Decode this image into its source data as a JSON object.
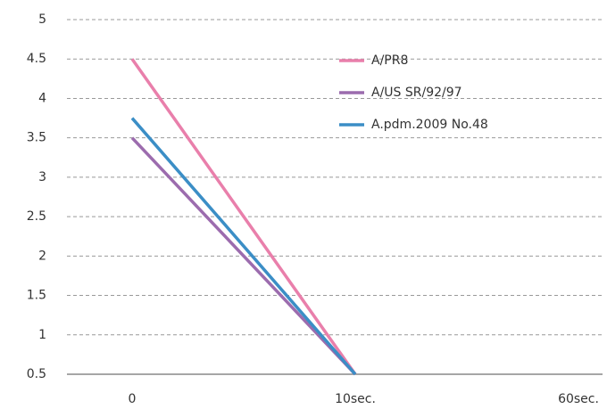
{
  "chart_data": {
    "type": "line",
    "categories": [
      "0",
      "10sec.",
      "60sec."
    ],
    "series": [
      {
        "name": "A/PR8",
        "color": "#e97fab",
        "values": [
          4.5,
          0.5,
          null
        ]
      },
      {
        "name": "A/US SR/92/97",
        "color": "#9c6cae",
        "values": [
          3.5,
          0.5,
          null
        ]
      },
      {
        "name": "A.pdm.2009 No.48",
        "color": "#3b8ec6",
        "values": [
          3.75,
          0.5,
          null
        ]
      }
    ],
    "ylim": [
      0.5,
      5
    ],
    "yticks": [
      0.5,
      1,
      1.5,
      2,
      2.5,
      3,
      3.5,
      4,
      4.5,
      5
    ],
    "grid": true,
    "legend": "top-right"
  }
}
